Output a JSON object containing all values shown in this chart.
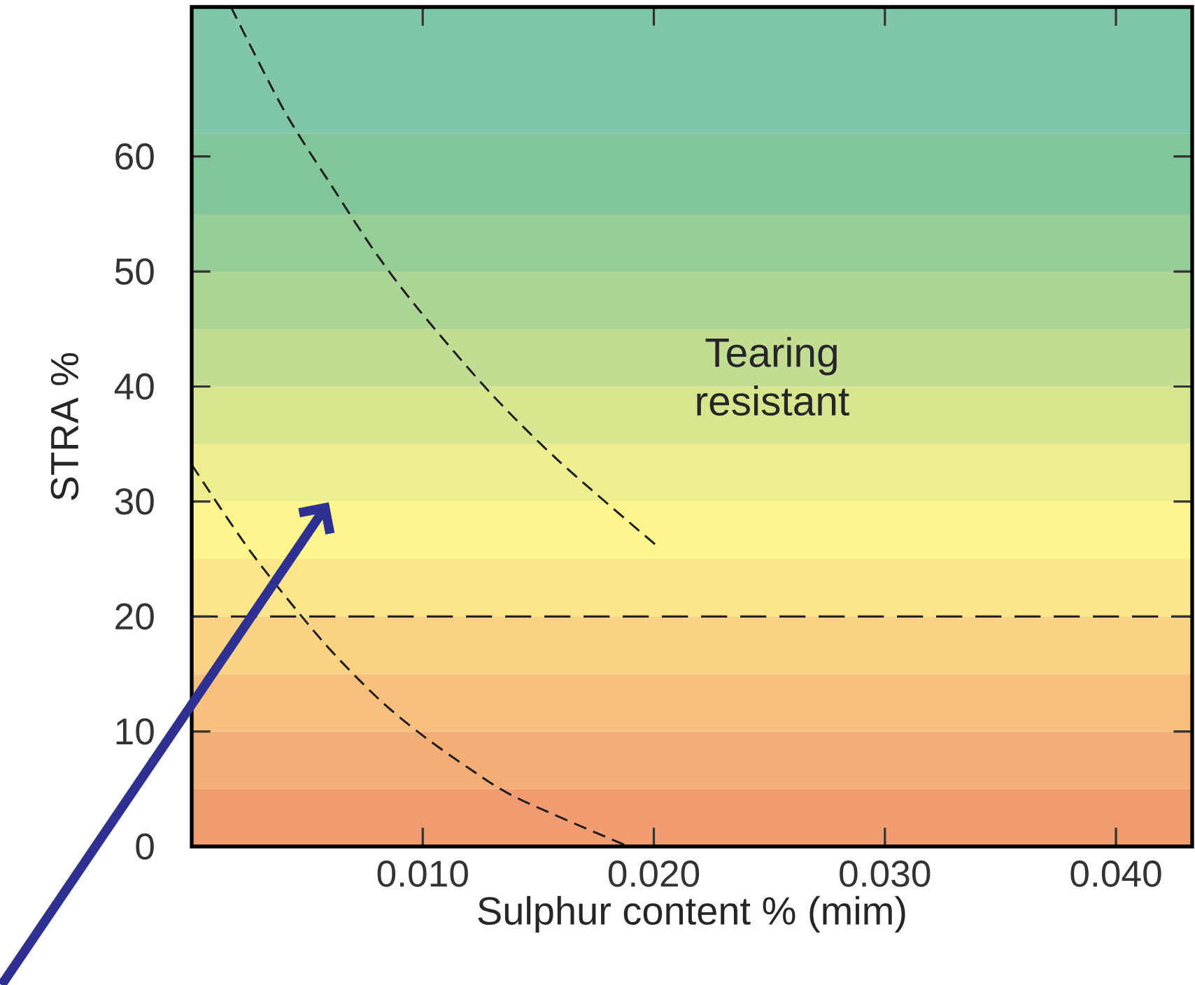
{
  "chart_data": {
    "type": "line",
    "xlabel": "Sulphur content % (mim)",
    "ylabel": "STRA %",
    "xlim": [
      0,
      0.0433
    ],
    "ylim": [
      0,
      73
    ],
    "xticks": [
      {
        "value": 0.01,
        "label": "0.010"
      },
      {
        "value": 0.02,
        "label": "0.020"
      },
      {
        "value": 0.03,
        "label": "0.030"
      },
      {
        "value": 0.04,
        "label": "0.040"
      }
    ],
    "yticks": [
      0,
      10,
      20,
      30,
      40,
      50,
      60
    ],
    "series": [
      {
        "color": "#1a1a1a",
        "x": [
          0.0017,
          0.004,
          0.0062,
          0.008,
          0.0099,
          0.0129,
          0.0159,
          0.0201
        ],
        "values": [
          73,
          64,
          57,
          51.5,
          46.5,
          39.5,
          33.5,
          26.2
        ]
      },
      {
        "color": "#1a1a1a",
        "x": [
          0.0,
          0.0026,
          0.0056,
          0.008,
          0.0099,
          0.012,
          0.0141,
          0.0189
        ],
        "values": [
          33.2,
          25.5,
          18,
          13,
          9.8,
          6.8,
          4.2,
          0
        ]
      }
    ],
    "line_style": "dashed",
    "marker": "none",
    "ref_lines": [
      {
        "axis": "y",
        "value": 20,
        "color": "#1a1a1a",
        "line_style": "dashed"
      }
    ],
    "bands": [
      {
        "axis": "y",
        "from": 0,
        "to": 5,
        "color": "#f09c70"
      },
      {
        "axis": "y",
        "from": 5,
        "to": 10,
        "color": "#f3ad76"
      },
      {
        "axis": "y",
        "from": 10,
        "to": 15,
        "color": "#f6c07c"
      },
      {
        "axis": "y",
        "from": 15,
        "to": 20,
        "color": "#f9d383"
      },
      {
        "axis": "y",
        "from": 20,
        "to": 25,
        "color": "#fce58a"
      },
      {
        "axis": "y",
        "from": 25,
        "to": 30,
        "color": "#fdf58e"
      },
      {
        "axis": "y",
        "from": 30,
        "to": 35,
        "color": "#eeee8e"
      },
      {
        "axis": "y",
        "from": 35,
        "to": 40,
        "color": "#d8e58f"
      },
      {
        "axis": "y",
        "from": 40,
        "to": 45,
        "color": "#c2dc92"
      },
      {
        "axis": "y",
        "from": 45,
        "to": 50,
        "color": "#acd494"
      },
      {
        "axis": "y",
        "from": 50,
        "to": 55,
        "color": "#96cc96"
      },
      {
        "axis": "y",
        "from": 55,
        "to": 62,
        "color": "#80c698"
      },
      {
        "axis": "y",
        "from": 62,
        "to": 73,
        "color": "#80c6a8"
      }
    ],
    "annotations": [
      "Tearing resistant"
    ]
  }
}
